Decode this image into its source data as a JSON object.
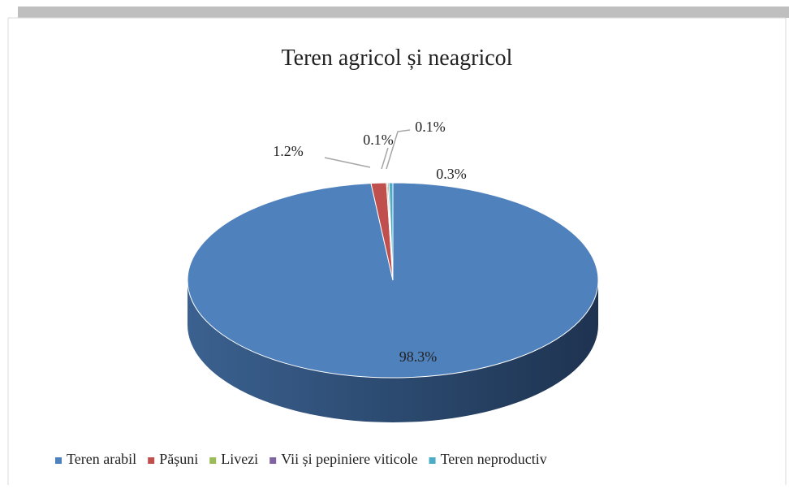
{
  "chart_data": {
    "type": "pie",
    "title": "Teren agricol  și neagricol",
    "categories": [
      "Teren arabil",
      "Pășuni",
      "Livezi",
      "Vii și pepiniere viticole",
      "Teren neproductiv"
    ],
    "values": [
      98.3,
      1.2,
      0.1,
      0.1,
      0.3
    ],
    "value_labels": [
      "98.3%",
      "1.2%",
      "0.1%",
      "0.1%",
      "0.3%"
    ],
    "colors": [
      "#4f81bd",
      "#c0504d",
      "#9bbb59",
      "#8064a2",
      "#4bacc6"
    ],
    "legend": "bottom"
  }
}
